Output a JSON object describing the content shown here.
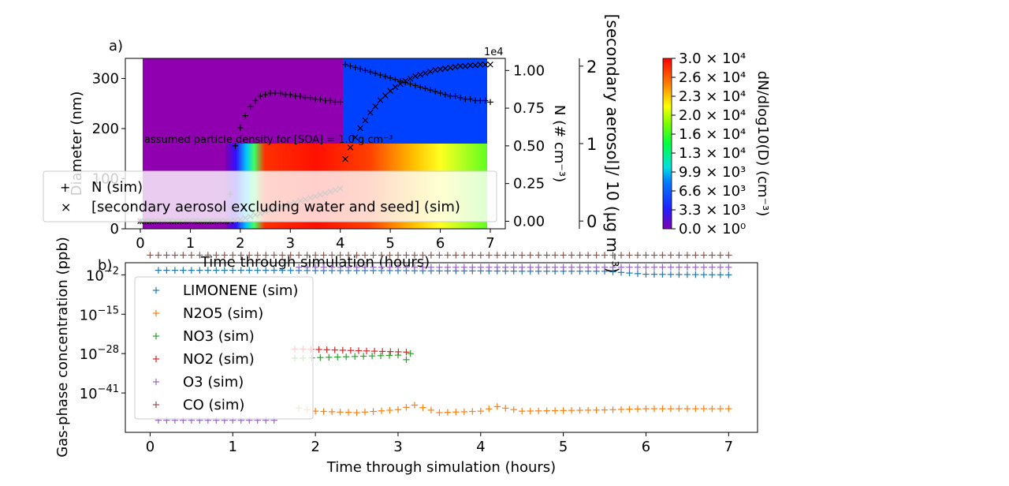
{
  "panel_a": {
    "tag": "a)",
    "xlabel": "Time through simulation (hours)",
    "ylabel": "Diameter (nm)",
    "y2label": "N (# cm⁻³)",
    "y2_multiplier": "1e4",
    "y3label": "[secondary aerosol]/ 10 (µg m⁻³)",
    "annotation": "assumed particle density for [SOA] = 1.0 g cm⁻³",
    "colorbar_label": "dN/dlog10(D) (cm⁻³)",
    "x_ticks": [
      "0",
      "1",
      "2",
      "3",
      "4",
      "5",
      "6",
      "7"
    ],
    "y_ticks": [
      "0",
      "100",
      "200",
      "300"
    ],
    "y2_ticks": [
      "0.00",
      "0.25",
      "0.50",
      "0.75",
      "1.00"
    ],
    "y3_ticks": [
      "0",
      "1",
      "2"
    ],
    "colorbar_ticks": [
      "0.0 × 10⁰",
      "3.3 × 10³",
      "6.6 × 10³",
      "9.9 × 10³",
      "1.3 × 10⁴",
      "1.6 × 10⁴",
      "2.0 × 10⁴",
      "2.3 × 10⁴",
      "2.6 × 10⁴",
      "3.0 × 10⁴"
    ],
    "legend": [
      {
        "marker": "+",
        "label": "N (sim)"
      },
      {
        "marker": "×",
        "label": "[secondary aerosol excluding water and seed] (sim)"
      }
    ]
  },
  "panel_b": {
    "tag": "b)",
    "xlabel": "Time through simulation (hours)",
    "ylabel": "Gas-phase concentration (ppb)",
    "x_ticks": [
      "0",
      "1",
      "2",
      "3",
      "4",
      "5",
      "6",
      "7"
    ],
    "y_ticks": [
      {
        "base": "10",
        "exp": "−2"
      },
      {
        "base": "10",
        "exp": "−15"
      },
      {
        "base": "10",
        "exp": "−28"
      },
      {
        "base": "10",
        "exp": "−41"
      }
    ],
    "legend": [
      {
        "label": "LIMONENE (sim)",
        "color": "#1f77b4"
      },
      {
        "label": "N2O5 (sim)",
        "color": "#ff7f0e"
      },
      {
        "label": "NO3 (sim)",
        "color": "#2ca02c"
      },
      {
        "label": "NO2 (sim)",
        "color": "#d62728"
      },
      {
        "label": "O3 (sim)",
        "color": "#9467bd"
      },
      {
        "label": "CO (sim)",
        "color": "#8c564b"
      }
    ]
  },
  "chart_data": [
    {
      "type": "heatmap",
      "panel": "a",
      "xlim": [
        -0.3,
        7.3
      ],
      "ylim": [
        0,
        340
      ],
      "y2lim": [
        -0.05,
        1.08
      ],
      "y3lim": [
        -0.1,
        2.1
      ],
      "colorbar_range": [
        0,
        30000
      ],
      "note": "size distribution heatmap with N (sim) and secondary aerosol series overlaid",
      "series": [
        {
          "name": "N (sim)",
          "axis": "y2",
          "x": [
            0,
            0.1,
            0.2,
            0.3,
            0.4,
            0.5,
            0.6,
            0.7,
            0.8,
            0.9,
            1.0,
            1.1,
            1.2,
            1.3,
            1.4,
            1.5,
            1.6,
            1.7,
            1.8,
            1.9,
            2.0,
            2.1,
            2.2,
            2.3,
            2.4,
            2.5,
            2.6,
            2.7,
            2.8,
            2.9,
            3.0,
            3.1,
            3.2,
            3.3,
            3.4,
            3.5,
            3.6,
            3.7,
            3.8,
            3.9,
            4.0,
            4.1,
            4.2,
            4.3,
            4.4,
            4.5,
            4.6,
            4.7,
            4.8,
            4.9,
            5.0,
            5.1,
            5.2,
            5.3,
            5.4,
            5.5,
            5.6,
            5.7,
            5.8,
            5.9,
            6.0,
            6.1,
            6.2,
            6.3,
            6.4,
            6.5,
            6.6,
            6.7,
            6.8,
            6.9,
            7.0
          ],
          "values": [
            0,
            0,
            0,
            0,
            0,
            0,
            0,
            0,
            0,
            0,
            0,
            0,
            0,
            0,
            0,
            0,
            0,
            0,
            0.18,
            0.5,
            0.62,
            0.7,
            0.76,
            0.8,
            0.83,
            0.84,
            0.85,
            0.85,
            0.85,
            0.84,
            0.84,
            0.83,
            0.83,
            0.82,
            0.82,
            0.81,
            0.81,
            0.8,
            0.8,
            0.79,
            0.79,
            1.04,
            1.03,
            1.02,
            1.01,
            1.0,
            0.99,
            0.98,
            0.97,
            0.96,
            0.95,
            0.94,
            0.93,
            0.92,
            0.91,
            0.9,
            0.89,
            0.88,
            0.87,
            0.86,
            0.85,
            0.84,
            0.83,
            0.83,
            0.82,
            0.81,
            0.81,
            0.8,
            0.8,
            0.8,
            0.79
          ]
        },
        {
          "name": "[secondary aerosol excluding water and seed] (sim)",
          "axis": "y3",
          "x": [
            0,
            0.1,
            0.2,
            0.3,
            0.4,
            0.5,
            0.6,
            0.7,
            0.8,
            0.9,
            1.0,
            1.1,
            1.2,
            1.3,
            1.4,
            1.5,
            1.6,
            1.7,
            1.8,
            1.9,
            2.0,
            2.1,
            2.2,
            2.3,
            2.4,
            2.5,
            2.6,
            2.7,
            2.8,
            2.9,
            3.0,
            3.1,
            3.2,
            3.3,
            3.4,
            3.5,
            3.6,
            3.7,
            3.8,
            3.9,
            4.0,
            4.1,
            4.2,
            4.3,
            4.4,
            4.5,
            4.6,
            4.7,
            4.8,
            4.9,
            5.0,
            5.1,
            5.2,
            5.3,
            5.4,
            5.5,
            5.6,
            5.7,
            5.8,
            5.9,
            6.0,
            6.1,
            6.2,
            6.3,
            6.4,
            6.5,
            6.6,
            6.7,
            6.8,
            6.9,
            7.0
          ],
          "values": [
            0.0,
            0.0,
            0.0,
            0.0,
            0.0,
            0.0,
            0.0,
            0.0,
            0.0,
            0.0,
            0.0,
            0.0,
            0.0,
            0.0,
            0.0,
            0.0,
            0.0,
            0.0,
            0.0,
            0.01,
            0.02,
            0.04,
            0.06,
            0.08,
            0.1,
            0.12,
            0.14,
            0.16,
            0.18,
            0.2,
            0.22,
            0.24,
            0.26,
            0.28,
            0.3,
            0.32,
            0.34,
            0.36,
            0.38,
            0.4,
            0.42,
            0.8,
            0.95,
            1.08,
            1.2,
            1.3,
            1.4,
            1.48,
            1.56,
            1.62,
            1.68,
            1.73,
            1.77,
            1.81,
            1.84,
            1.87,
            1.89,
            1.91,
            1.93,
            1.95,
            1.96,
            1.97,
            1.98,
            1.99,
            2.0,
            2.0,
            2.01,
            2.01,
            2.02,
            2.02,
            2.02
          ]
        }
      ]
    },
    {
      "type": "scatter",
      "panel": "b",
      "xlim": [
        -0.3,
        7.35
      ],
      "ylim_log10": [
        -54,
        2
      ],
      "y_scale": "log",
      "series": [
        {
          "name": "LIMONENE (sim)",
          "color": "#1f77b4",
          "x": [
            0.1,
            0.5,
            1.0,
            1.5,
            2.0,
            2.5,
            3.0,
            3.5,
            4.0,
            4.5,
            5.0,
            5.5,
            6.0,
            6.5,
            7.0
          ],
          "values": [
            -0.5,
            -0.5,
            -0.5,
            -0.5,
            -0.6,
            -0.6,
            -0.6,
            -0.7,
            -0.7,
            -0.8,
            -0.8,
            -0.8,
            -1.8,
            -1.9,
            -2.0
          ]
        },
        {
          "name": "N2O5 (sim)",
          "color": "#ff7f0e",
          "x": [
            1.8,
            2.0,
            2.5,
            3.0,
            3.2,
            3.5,
            4.0,
            4.2,
            4.5,
            5.0,
            5.5,
            6.0,
            6.5,
            7.0
          ],
          "values": [
            -46,
            -47,
            -47.5,
            -46.5,
            -45,
            -47.5,
            -47,
            -45.5,
            -47,
            -46.8,
            -46.6,
            -46.2,
            -46.2,
            -46.2
          ]
        },
        {
          "name": "NO3 (sim)",
          "color": "#2ca02c",
          "x": [
            1.75,
            1.85,
            3.0,
            3.1,
            3.15
          ],
          "values": [
            -29.5,
            -29.5,
            -28.5,
            -30,
            -28
          ]
        },
        {
          "name": "NO2 (sim)",
          "color": "#d62728",
          "x": [
            1.75,
            1.85,
            3.1
          ],
          "values": [
            -26.5,
            -26.5,
            -27.5
          ]
        },
        {
          "name": "O3 (sim)",
          "color": "#9467bd",
          "x": [
            0.1,
            0.5,
            1.0,
            1.5,
            1.8,
            2.0,
            3.0,
            4.0,
            5.0,
            6.0,
            7.0
          ],
          "values": [
            -50,
            -50,
            -50,
            -50,
            0.5,
            0.5,
            0.5,
            0.5,
            0.5,
            0.5,
            0.5
          ]
        },
        {
          "name": "CO (sim)",
          "color": "#8c564b",
          "x": [
            0.0,
            0.5,
            1.0,
            1.5,
            2.0,
            2.5,
            3.0,
            3.5,
            4.0,
            4.5,
            5.0,
            5.5,
            6.0,
            6.5,
            7.0
          ],
          "values": [
            4.5,
            4.5,
            4.5,
            4.5,
            4.5,
            4.5,
            4.5,
            4.5,
            4.5,
            4.5,
            4.5,
            4.5,
            4.5,
            4.5,
            4.5
          ]
        }
      ]
    }
  ]
}
